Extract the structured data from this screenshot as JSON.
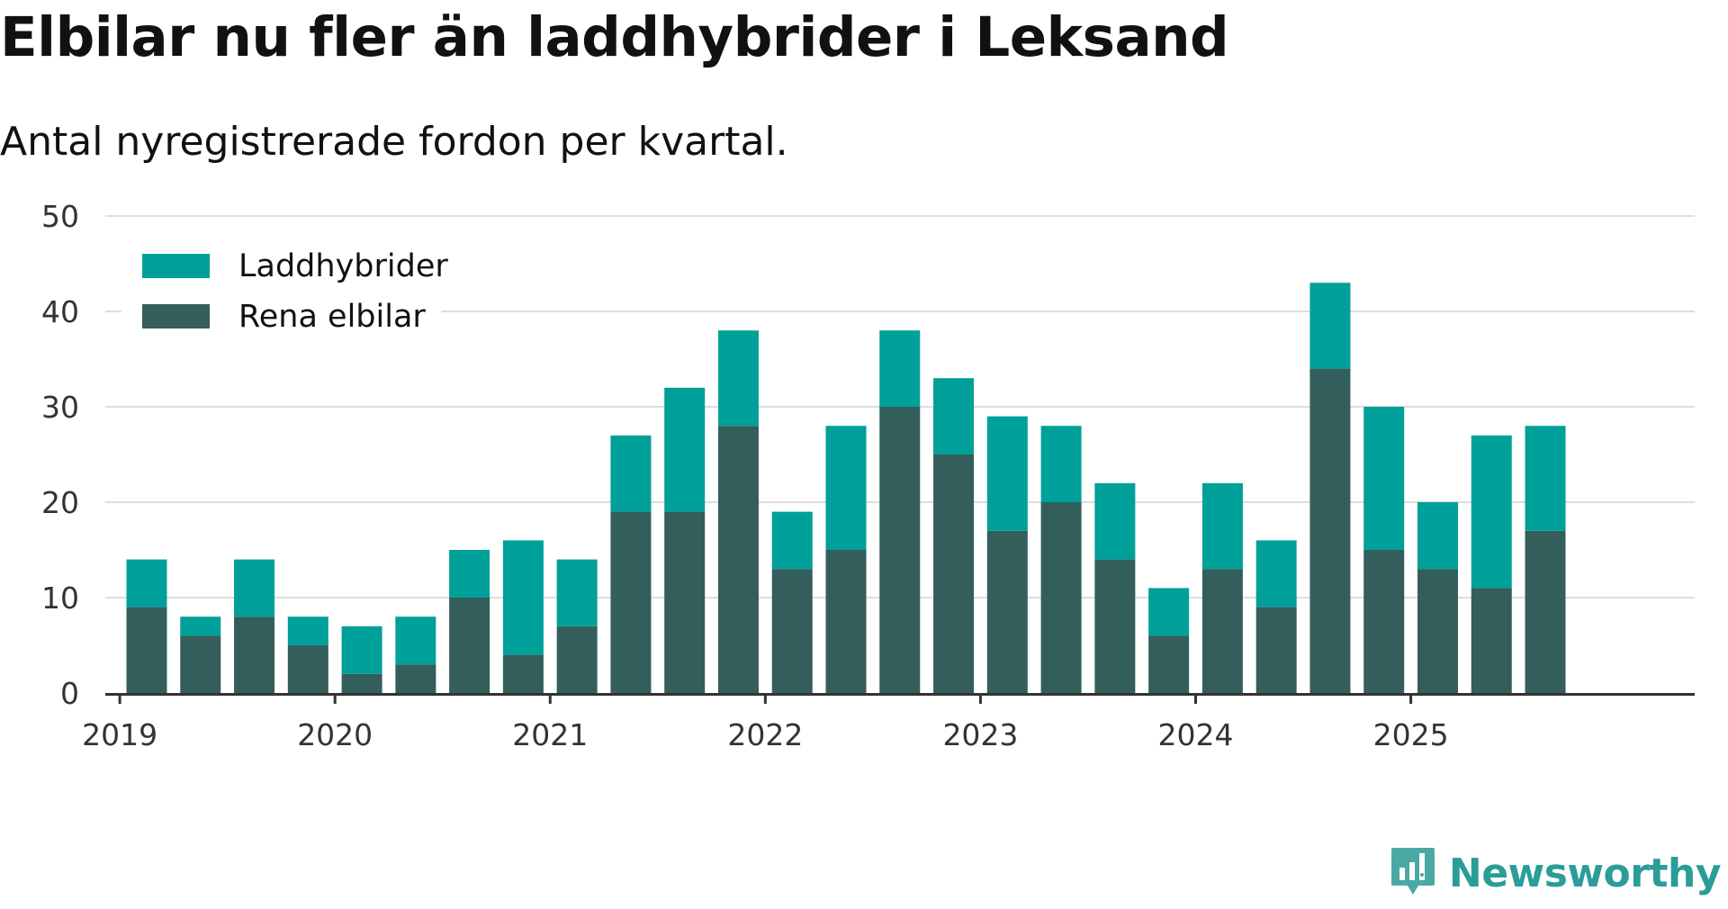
{
  "title": "Elbilar nu fler än laddhybrider i Leksand",
  "subtitle": "Antal nyregistrerade fordon per kvartal.",
  "brand": {
    "name": "Newsworthy",
    "icon": "newsworthy-logo-icon"
  },
  "colors": {
    "laddhybrider": "#00a09a",
    "elbilar": "#335e5b",
    "grid": "#dddddd",
    "axis": "#333333",
    "brand": "#2a9d99"
  },
  "chart_data": {
    "type": "bar",
    "stacked": true,
    "categories": [
      "2019 Q2",
      "2019 Q3",
      "2019 Q4",
      "2020 Q1",
      "2020 Q2",
      "2020 Q3",
      "2020 Q4",
      "2021 Q1",
      "2021 Q2",
      "2021 Q3",
      "2021 Q4",
      "2022 Q1",
      "2022 Q2",
      "2022 Q3",
      "2022 Q4",
      "2023 Q1",
      "2023 Q2",
      "2023 Q3",
      "2023 Q4",
      "2024 Q1",
      "2024 Q2",
      "2024 Q3",
      "2024 Q4",
      "2025 Q1",
      "2025 Q2",
      "2025 Q3",
      "2025 Q4"
    ],
    "quarter_index": [
      2,
      3,
      4,
      5,
      6,
      7,
      8,
      9,
      10,
      11,
      12,
      13,
      14,
      15,
      16,
      17,
      18,
      19,
      20,
      21,
      22,
      23,
      24,
      25,
      26,
      27,
      28
    ],
    "series": [
      {
        "name": "Rena elbilar",
        "values": [
          9,
          6,
          8,
          5,
          2,
          3,
          10,
          4,
          7,
          19,
          19,
          28,
          13,
          15,
          30,
          25,
          17,
          20,
          14,
          6,
          13,
          9,
          34,
          15,
          13,
          11,
          17
        ]
      },
      {
        "name": "Laddhybrider",
        "values": [
          5,
          2,
          6,
          3,
          5,
          5,
          5,
          12,
          7,
          8,
          13,
          10,
          6,
          13,
          8,
          8,
          12,
          8,
          8,
          5,
          9,
          7,
          9,
          15,
          7,
          16,
          11
        ]
      }
    ],
    "legend": [
      "Laddhybrider",
      "Rena elbilar"
    ],
    "legend_position": "top-left",
    "x_ticks": [
      "2019",
      "2020",
      "2021",
      "2022",
      "2023",
      "2024",
      "2025"
    ],
    "y_ticks": [
      "0",
      "10",
      "20",
      "30",
      "40",
      "50"
    ],
    "ylim": [
      0,
      50
    ],
    "xlabel": "",
    "ylabel": "",
    "grid": true
  }
}
